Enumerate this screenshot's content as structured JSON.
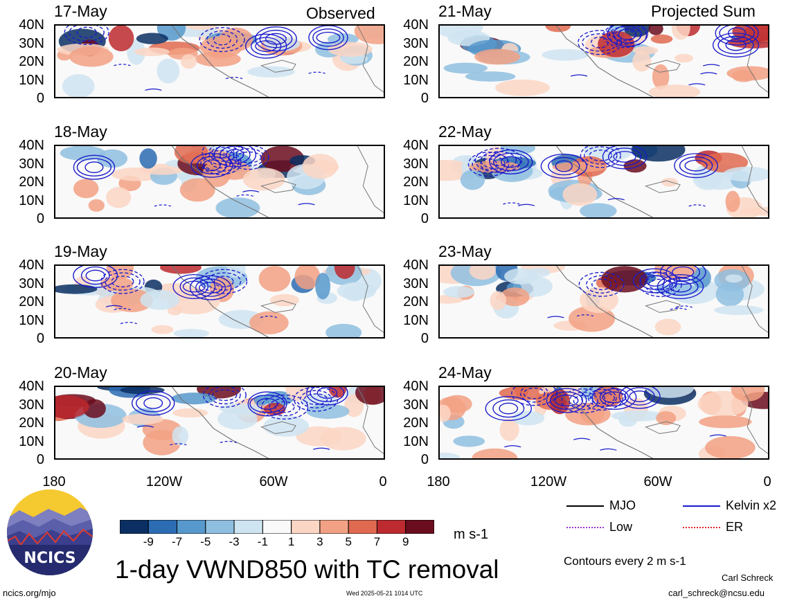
{
  "colors": {
    "neg": [
      "#0b2f63",
      "#2b6cb3",
      "#5799cd",
      "#8fbfe0",
      "#cfe4f1"
    ],
    "neutral": "#f9f9f9",
    "pos": [
      "#fbd6c4",
      "#f2a184",
      "#e06a50",
      "#bd2a2f",
      "#6b0d1f"
    ],
    "mjo": "#000000",
    "low": "#9933cc",
    "kelvin": "#1a1acc",
    "er": "#dd2222",
    "coast": "#777777"
  },
  "headers": {
    "left": "Observed",
    "right": "Projected Sum"
  },
  "panels_left": [
    {
      "date": "17-May"
    },
    {
      "date": "18-May"
    },
    {
      "date": "19-May"
    },
    {
      "date": "20-May"
    }
  ],
  "panels_right": [
    {
      "date": "21-May"
    },
    {
      "date": "22-May"
    },
    {
      "date": "23-May"
    },
    {
      "date": "24-May"
    }
  ],
  "lat_labels": [
    "40N",
    "30N",
    "20N",
    "10N",
    "0"
  ],
  "lon_labels": [
    "180",
    "120W",
    "60W",
    "0"
  ],
  "colorbar": {
    "labels": [
      "-9",
      "-7",
      "-5",
      "-3",
      "-1",
      "1",
      "3",
      "5",
      "7",
      "9"
    ],
    "units": "m s-1"
  },
  "legend": {
    "items": [
      {
        "name": "MJO",
        "color_key": "mjo"
      },
      {
        "name": "Kelvin x2",
        "color_key": "kelvin"
      },
      {
        "name": "Low",
        "color_key": "low"
      },
      {
        "name": "ER",
        "color_key": "er"
      }
    ],
    "contour_note": "Contours every 2 m s-1"
  },
  "title": "1-day VWND850 with TC removal",
  "logo_text": "NCICS",
  "footer": {
    "url": "ncics.org/mjo",
    "timestamp": "Wed 2025-05-21 1014 UTC",
    "author": "Carl Schreck",
    "email": "carl_schreck@ncsu.edu"
  }
}
